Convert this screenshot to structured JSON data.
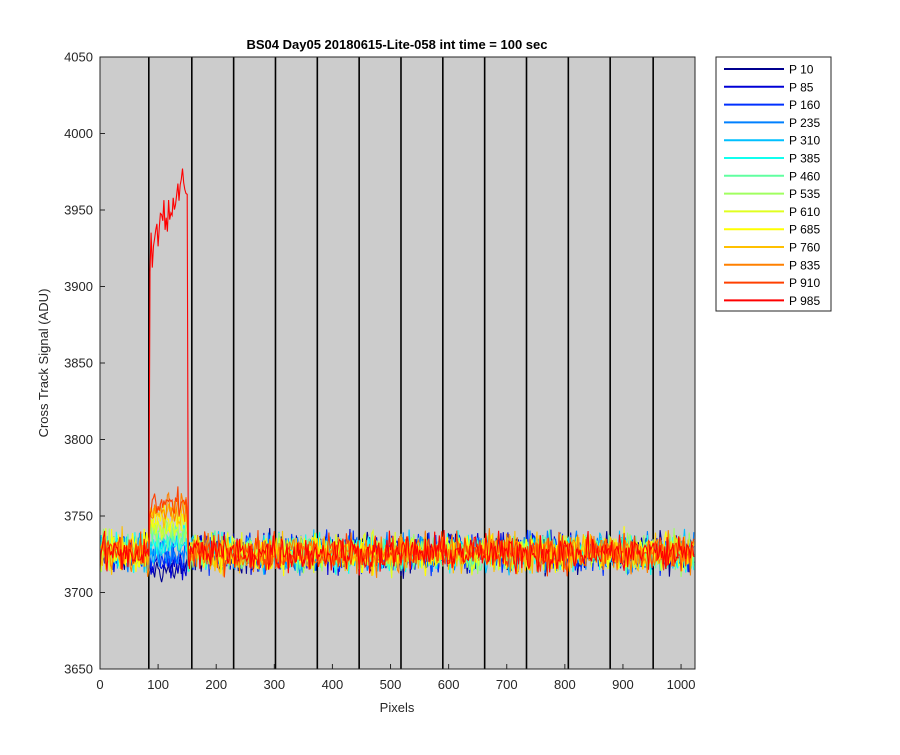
{
  "chart_data": {
    "type": "line",
    "title": "BS04 Day05 20180615-Lite-058 int time = 100 sec",
    "xlabel": "Pixels",
    "ylabel": "Cross Track Signal (ADU)",
    "xlim": [
      0,
      1024
    ],
    "ylim": [
      3650,
      4050
    ],
    "xticks": [
      "0",
      "100",
      "200",
      "300",
      "400",
      "500",
      "600",
      "700",
      "800",
      "900",
      "1000"
    ],
    "yticks": [
      "3650",
      "3700",
      "3750",
      "3800",
      "3850",
      "3900",
      "3950",
      "4000",
      "4050"
    ],
    "grid": false,
    "background_color": "#cccccc",
    "legend_position": "outside-top-right",
    "tap_boundaries": [
      84,
      158,
      230,
      302,
      374,
      446,
      518,
      590,
      662,
      734,
      806,
      878,
      952
    ],
    "noise_description_values": {
      "baseline_mean": 3726,
      "baseline_range": [
        3690,
        3760
      ],
      "anomaly_pixel_range": [
        86,
        150
      ]
    },
    "series": [
      {
        "name": "P 10",
        "color": "#00008f",
        "anomaly_mean": 3715
      },
      {
        "name": "P 85",
        "color": "#0000d6",
        "anomaly_mean": 3718
      },
      {
        "name": "P 160",
        "color": "#0030ff",
        "anomaly_mean": 3722
      },
      {
        "name": "P 235",
        "color": "#0080ff",
        "anomaly_mean": 3726
      },
      {
        "name": "P 310",
        "color": "#00c0ff",
        "anomaly_mean": 3730
      },
      {
        "name": "P 385",
        "color": "#10ffef",
        "anomaly_mean": 3733
      },
      {
        "name": "P 460",
        "color": "#60ffa0",
        "anomaly_mean": 3737
      },
      {
        "name": "P 535",
        "color": "#a0ff60",
        "anomaly_mean": 3740
      },
      {
        "name": "P 610",
        "color": "#e0ff20",
        "anomaly_mean": 3744
      },
      {
        "name": "P 685",
        "color": "#ffff00",
        "anomaly_mean": 3748
      },
      {
        "name": "P 760",
        "color": "#ffc000",
        "anomaly_mean": 3752
      },
      {
        "name": "P 835",
        "color": "#ff8000",
        "anomaly_mean": 3756
      },
      {
        "name": "P 910",
        "color": "#ff4000",
        "anomaly_mean": 3758
      },
      {
        "name": "P 985",
        "color": "#ff0000",
        "anomaly_mean": 3925
      }
    ]
  }
}
